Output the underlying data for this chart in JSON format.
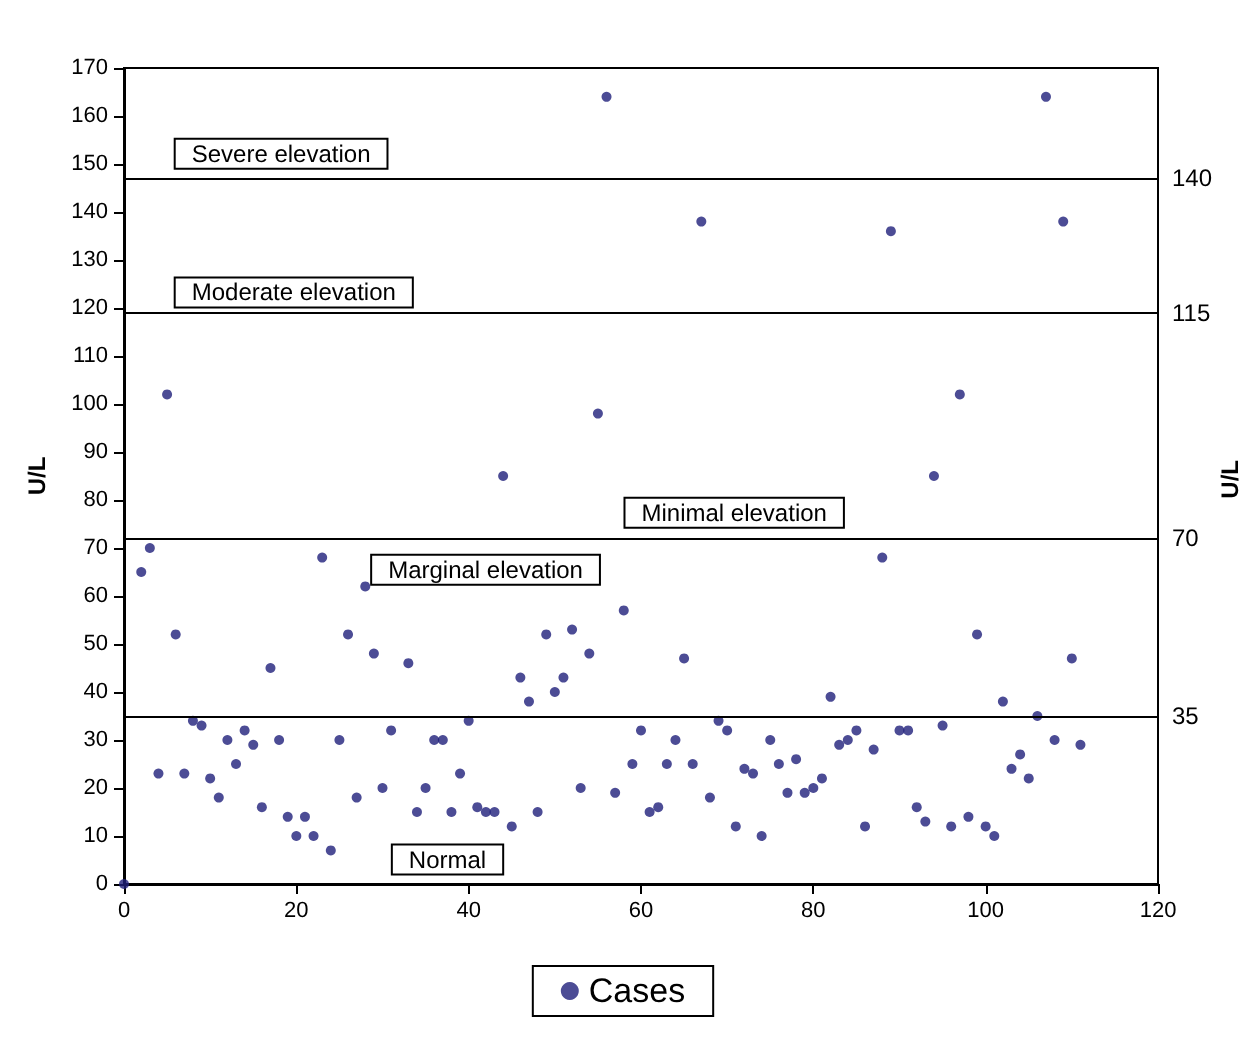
{
  "chart_data": {
    "type": "scatter",
    "ylabel": "U/L",
    "y2label": "U/L",
    "xlim": [
      0,
      120
    ],
    "xticks": [
      0,
      20,
      40,
      60,
      80,
      100,
      120
    ],
    "ylim": [
      0,
      170
    ],
    "yticks": [
      0,
      10,
      20,
      30,
      40,
      50,
      60,
      70,
      80,
      90,
      100,
      110,
      120,
      130,
      140,
      150,
      160,
      170
    ],
    "grid": false,
    "legend": "bottom",
    "marker": "circle",
    "ref_lines": [
      {
        "axis": "y",
        "value": 147
      },
      {
        "axis": "y",
        "value": 119
      },
      {
        "axis": "y",
        "value": 72
      },
      {
        "axis": "y",
        "value": 35
      }
    ],
    "annotations": [
      "Severe elevation",
      "Moderate elevation",
      "Marginal elevation",
      "Minimal elevation",
      "Normal",
      "140",
      "115",
      "70",
      "35"
    ],
    "series": [
      {
        "name": "Cases",
        "color": "#1f1f7a",
        "x": [
          0,
          2,
          3,
          4,
          5,
          6,
          7,
          8,
          9,
          10,
          11,
          12,
          13,
          14,
          15,
          16,
          17,
          18,
          19,
          20,
          21,
          22,
          23,
          24,
          25,
          26,
          27,
          28,
          29,
          30,
          31,
          33,
          34,
          35,
          36,
          37,
          38,
          39,
          40,
          41,
          42,
          43,
          44,
          45,
          46,
          47,
          48,
          49,
          50,
          51,
          52,
          53,
          54,
          55,
          56,
          57,
          58,
          59,
          60,
          61,
          62,
          63,
          64,
          65,
          66,
          67,
          68,
          69,
          70,
          71,
          72,
          73,
          74,
          75,
          76,
          77,
          78,
          79,
          80,
          81,
          82,
          83,
          84,
          85,
          86,
          87,
          88,
          89,
          90,
          91,
          92,
          93,
          94,
          95,
          96,
          97,
          98,
          99,
          100,
          101,
          102,
          103,
          104,
          105,
          106,
          107,
          108,
          109,
          110,
          111
        ],
        "values": [
          0,
          65,
          70,
          23,
          102,
          52,
          23,
          34,
          33,
          22,
          18,
          30,
          25,
          32,
          29,
          16,
          45,
          30,
          14,
          10,
          14,
          10,
          68,
          7,
          30,
          52,
          18,
          62,
          48,
          20,
          32,
          46,
          15,
          20,
          30,
          30,
          15,
          23,
          34,
          16,
          15,
          15,
          85,
          12,
          43,
          38,
          15,
          52,
          40,
          43,
          53,
          20,
          48,
          98,
          164,
          19,
          57,
          25,
          32,
          15,
          16,
          25,
          30,
          47,
          25,
          138,
          18,
          34,
          32,
          12,
          24,
          23,
          10,
          30,
          25,
          19,
          26,
          19,
          20,
          22,
          39,
          29,
          30,
          32,
          12,
          28,
          68,
          136,
          32,
          32,
          16,
          13,
          85,
          33,
          12,
          102,
          14,
          52,
          12,
          10,
          38,
          24,
          27,
          22,
          35,
          164,
          30,
          138,
          47,
          29
        ]
      }
    ]
  }
}
